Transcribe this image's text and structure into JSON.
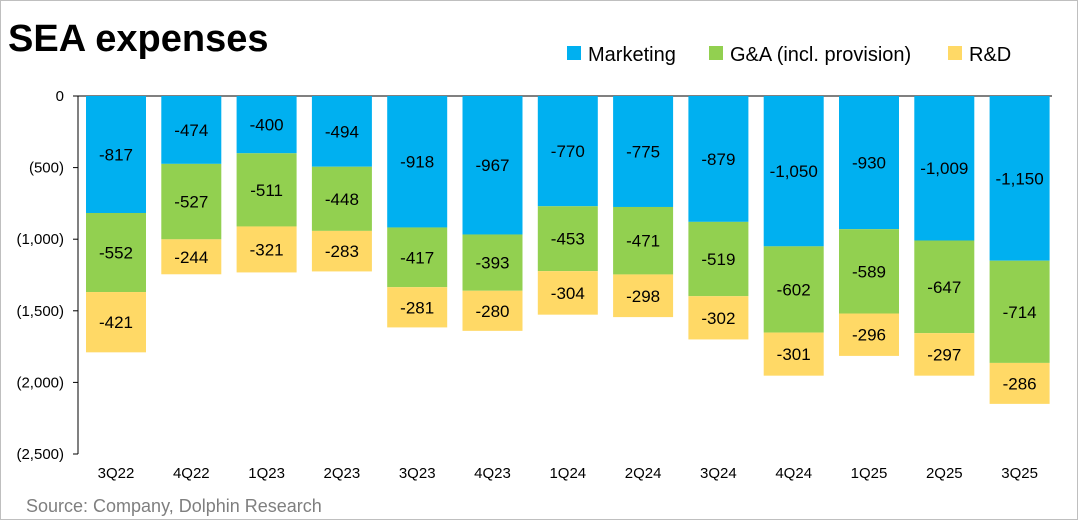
{
  "chart_data": {
    "type": "bar",
    "stacked": true,
    "title": "SEA expenses",
    "source": "Source: Company, Dolphin Research",
    "categories": [
      "3Q22",
      "4Q22",
      "1Q23",
      "2Q23",
      "3Q23",
      "4Q23",
      "1Q24",
      "2Q24",
      "3Q24",
      "4Q24",
      "1Q25",
      "2Q25",
      "3Q25"
    ],
    "series": [
      {
        "name": "Marketing",
        "color": "#00B0F0",
        "values": [
          -817,
          -474,
          -400,
          -494,
          -918,
          -967,
          -770,
          -775,
          -879,
          -1050,
          -930,
          -1009,
          -1150
        ],
        "labels": [
          "-817",
          "-474",
          "-400",
          "-494",
          "-918",
          "-967",
          "-770",
          "-775",
          "-879",
          "-1,050",
          "-930",
          "-1,009",
          "-1,150"
        ]
      },
      {
        "name": "G&A (incl. provision)",
        "color": "#92D050",
        "values": [
          -552,
          -527,
          -511,
          -448,
          -417,
          -393,
          -453,
          -471,
          -519,
          -602,
          -589,
          -647,
          -714
        ],
        "labels": [
          "-552",
          "-527",
          "-511",
          "-448",
          "-417",
          "-393",
          "-453",
          "-471",
          "-519",
          "-602",
          "-589",
          "-647",
          "-714"
        ]
      },
      {
        "name": "R&D",
        "color": "#FFD966",
        "values": [
          -421,
          -244,
          -321,
          -283,
          -281,
          -280,
          -304,
          -298,
          -302,
          -301,
          -296,
          -297,
          -286
        ],
        "labels": [
          "-421",
          "-244",
          "-321",
          "-283",
          "-281",
          "-280",
          "-304",
          "-298",
          "-302",
          "-301",
          "-296",
          "-297",
          "-286"
        ]
      }
    ],
    "ylim": [
      -2500,
      0
    ],
    "yticks": [
      0,
      -500,
      -1000,
      -1500,
      -2000,
      -2500
    ],
    "ytick_labels": [
      "0",
      "(500)",
      "(1,000)",
      "(1,500)",
      "(2,000)",
      "(2,500)"
    ],
    "xlabel": "",
    "ylabel": "",
    "legend_position": "top-right",
    "grid": false
  },
  "watermark": "DolphinResearch"
}
